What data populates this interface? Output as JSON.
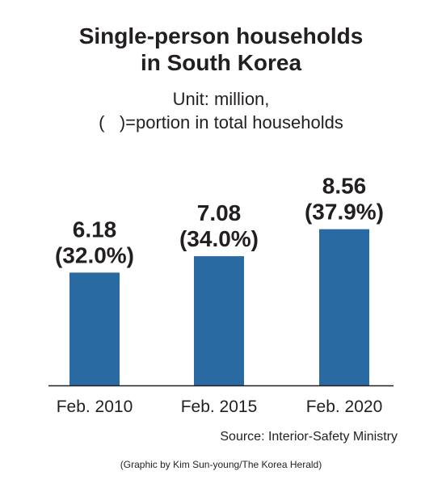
{
  "colors": {
    "bar": "#2a6aa3",
    "text": "#231f20",
    "axis": "#231f20",
    "background": "#ffffff"
  },
  "title": {
    "line1": "Single-person households",
    "line2": "in South Korea"
  },
  "unit_note": {
    "line1": "Unit: million,",
    "line2": "(   )=portion in total households"
  },
  "chart_data": {
    "type": "bar",
    "title": "Single-person households in South Korea",
    "unit": "million",
    "categories": [
      "Feb. 2010",
      "Feb. 2015",
      "Feb. 2020"
    ],
    "values": [
      6.18,
      7.08,
      8.56
    ],
    "value_labels": [
      "6.18",
      "7.08",
      "8.56"
    ],
    "share_labels": [
      "(32.0%)",
      "(34.0%)",
      "(37.9%)"
    ],
    "share_percent": [
      32.0,
      34.0,
      37.9
    ],
    "xlabel": "",
    "ylabel": "",
    "ylim": [
      0,
      10.05
    ],
    "grid": false,
    "legend": "none"
  },
  "source": "Source: Interior-Safety Ministry",
  "credit": "(Graphic by Kim Sun-young/The Korea Herald)"
}
